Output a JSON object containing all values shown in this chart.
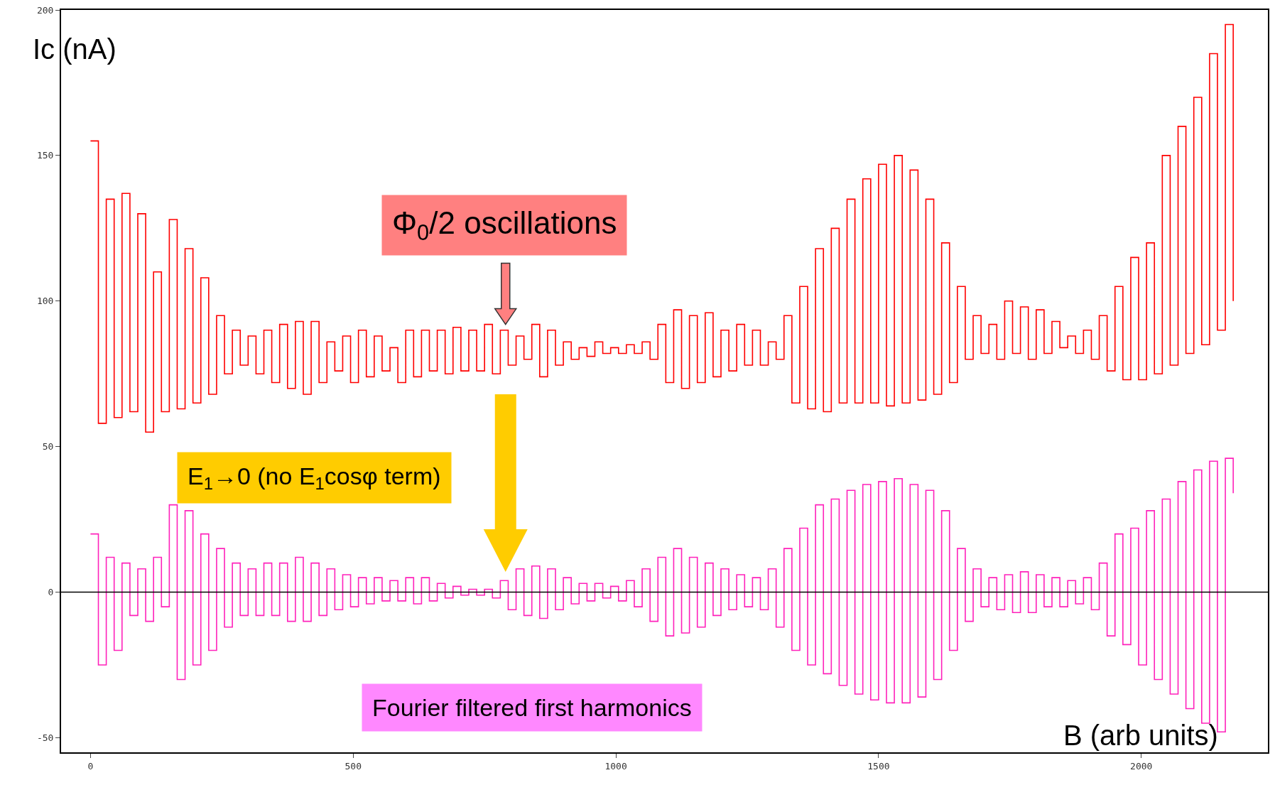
{
  "chart_data": {
    "type": "step",
    "xlabel": "B (arb units)",
    "ylabel": "Ic (nA)",
    "x": [
      0,
      15,
      30,
      45,
      60,
      75,
      90,
      105,
      120,
      135,
      150,
      165,
      180,
      195,
      210,
      225,
      240,
      255,
      270,
      285,
      300,
      315,
      330,
      345,
      360,
      375,
      390,
      405,
      420,
      435,
      450,
      465,
      480,
      495,
      510,
      525,
      540,
      555,
      570,
      585,
      600,
      615,
      630,
      645,
      660,
      675,
      690,
      705,
      720,
      735,
      750,
      765,
      780,
      795,
      810,
      825,
      840,
      855,
      870,
      885,
      900,
      915,
      930,
      945,
      960,
      975,
      990,
      1005,
      1020,
      1035,
      1050,
      1065,
      1080,
      1095,
      1110,
      1125,
      1140,
      1155,
      1170,
      1185,
      1200,
      1215,
      1230,
      1245,
      1260,
      1275,
      1290,
      1305,
      1320,
      1335,
      1350,
      1365,
      1380,
      1395,
      1410,
      1425,
      1440,
      1455,
      1470,
      1485,
      1500,
      1515,
      1530,
      1545,
      1560,
      1575,
      1590,
      1605,
      1620,
      1635,
      1650,
      1665,
      1680,
      1695,
      1710,
      1725,
      1740,
      1755,
      1770,
      1785,
      1800,
      1815,
      1830,
      1845,
      1860,
      1875,
      1890,
      1905,
      1920,
      1935,
      1950,
      1965,
      1980,
      1995,
      2010,
      2025,
      2040,
      2055,
      2070,
      2085,
      2100,
      2115,
      2130,
      2145,
      2160,
      2175
    ],
    "series": [
      {
        "color": "#ff0000",
        "values": [
          155,
          58,
          135,
          60,
          137,
          62,
          130,
          55,
          110,
          62,
          128,
          63,
          118,
          65,
          108,
          68,
          95,
          75,
          90,
          78,
          88,
          75,
          90,
          72,
          92,
          70,
          93,
          68,
          93,
          72,
          86,
          76,
          88,
          72,
          90,
          74,
          88,
          76,
          84,
          72,
          90,
          74,
          90,
          76,
          90,
          75,
          91,
          76,
          90,
          76,
          92,
          75,
          90,
          78,
          88,
          80,
          92,
          74,
          90,
          78,
          86,
          80,
          84,
          81,
          86,
          82,
          84,
          82,
          85,
          82,
          86,
          80,
          92,
          72,
          97,
          70,
          95,
          72,
          96,
          74,
          90,
          76,
          92,
          78,
          90,
          78,
          86,
          80,
          95,
          65,
          105,
          63,
          118,
          62,
          125,
          65,
          135,
          65,
          142,
          65,
          147,
          64,
          150,
          65,
          145,
          66,
          135,
          68,
          120,
          72,
          105,
          80,
          95,
          82,
          92,
          80,
          100,
          82,
          98,
          80,
          97,
          82,
          93,
          84,
          88,
          82,
          90,
          80,
          95,
          76,
          105,
          73,
          115,
          73,
          120,
          75,
          150,
          78,
          160,
          82,
          170,
          85,
          185,
          90,
          195,
          100
        ]
      },
      {
        "color": "#ff22bb",
        "values": [
          20,
          -25,
          12,
          -20,
          10,
          -8,
          8,
          -10,
          12,
          -5,
          30,
          -30,
          28,
          -25,
          20,
          -20,
          15,
          -12,
          10,
          -8,
          8,
          -8,
          10,
          -8,
          10,
          -10,
          12,
          -10,
          10,
          -8,
          8,
          -6,
          6,
          -5,
          5,
          -4,
          5,
          -3,
          4,
          -3,
          5,
          -4,
          5,
          -3,
          3,
          -2,
          2,
          -1,
          1,
          -1,
          1,
          -2,
          4,
          -6,
          8,
          -8,
          9,
          -9,
          8,
          -6,
          5,
          -4,
          3,
          -3,
          3,
          -2,
          2,
          -3,
          4,
          -5,
          8,
          -10,
          12,
          -15,
          15,
          -14,
          12,
          -12,
          10,
          -8,
          8,
          -6,
          6,
          -5,
          5,
          -6,
          8,
          -12,
          15,
          -20,
          22,
          -25,
          30,
          -28,
          32,
          -32,
          35,
          -35,
          37,
          -37,
          38,
          -38,
          39,
          -38,
          37,
          -36,
          35,
          -30,
          28,
          -20,
          15,
          -10,
          8,
          -5,
          5,
          -6,
          6,
          -7,
          7,
          -7,
          6,
          -5,
          5,
          -5,
          4,
          -4,
          5,
          -6,
          10,
          -15,
          20,
          -18,
          22,
          -25,
          28,
          -30,
          32,
          -35,
          38,
          -40,
          42,
          -45,
          45,
          -48,
          46,
          34
        ]
      }
    ],
    "xlim": [
      -56,
      2241
    ],
    "ylim": [
      -55,
      200
    ],
    "xticks": [
      0,
      500,
      1000,
      1500,
      2000
    ],
    "yticks": [
      -50,
      0,
      50,
      100,
      150,
      200
    ],
    "grid": false,
    "ref_lines": [
      {
        "axis": "y",
        "value": 0,
        "color": "#000000"
      }
    ],
    "annotations": [
      "Φ$_{0}$/2 oscillations",
      "E$_{1}$→0 (no E$_{1}$cosφ term)",
      "Fourier filtered first harmonics"
    ]
  }
}
